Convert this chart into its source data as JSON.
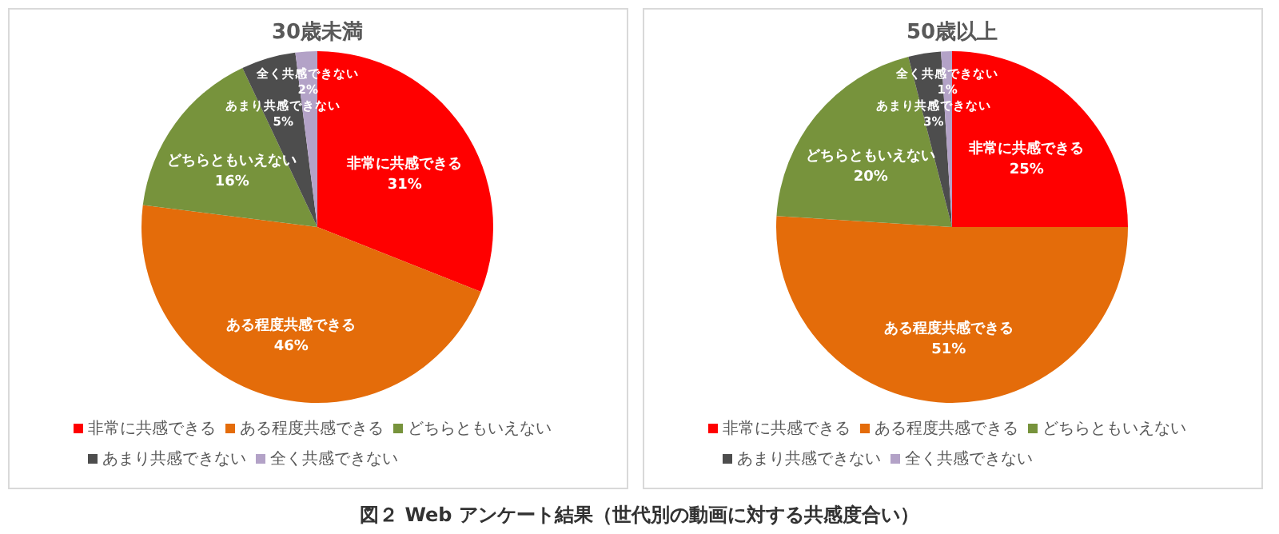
{
  "chart_data": [
    {
      "type": "pie",
      "title": "30歳未満",
      "categories": [
        "非常に共感できる",
        "ある程度共感できる",
        "どちらともいえない",
        "あまり共感できない",
        "全く共感できない"
      ],
      "values": [
        31,
        46,
        16,
        5,
        2
      ],
      "value_labels": [
        "31%",
        "46%",
        "16%",
        "5%",
        "2%"
      ],
      "colors": [
        "#ff0000",
        "#e46c0a",
        "#77933c",
        "#4d4d4d",
        "#b3a2c7"
      ],
      "legend": "bottom",
      "annotations": [
        "図２ Web アンケート結果（世代別の動画に対する共感度合い）"
      ]
    },
    {
      "type": "pie",
      "title": "50歳以上",
      "categories": [
        "非常に共感できる",
        "ある程度共感できる",
        "どちらともいえない",
        "あまり共感できない",
        "全く共感できない"
      ],
      "values": [
        25,
        51,
        20,
        3,
        1
      ],
      "value_labels": [
        "25%",
        "51%",
        "20%",
        "3%",
        "1%"
      ],
      "colors": [
        "#ff0000",
        "#e46c0a",
        "#77933c",
        "#4d4d4d",
        "#b3a2c7"
      ],
      "legend": "bottom"
    }
  ]
}
